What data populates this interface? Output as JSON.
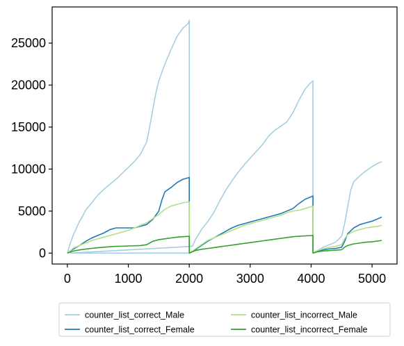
{
  "chart_data": {
    "type": "line",
    "title": "",
    "xlabel": "",
    "ylabel": "",
    "xlim": [
      -250,
      5410
    ],
    "ylim": [
      -1300,
      29300
    ],
    "xticks": [
      0,
      1000,
      2000,
      3000,
      4000,
      5000
    ],
    "xtick_labels": [
      "0",
      "1000",
      "2000",
      "3000",
      "4000",
      "5000"
    ],
    "yticks": [
      0,
      5000,
      10000,
      15000,
      20000,
      25000
    ],
    "ytick_labels": [
      "0",
      "5000",
      "10000",
      "15000",
      "20000",
      "25000"
    ],
    "grid": false,
    "legend": {
      "placement": "bottom-center-outside",
      "columns": 2
    },
    "series": [
      {
        "name": "counter_list_correct_Male",
        "color": "#a6cee3",
        "points": [
          [
            0,
            0
          ],
          [
            50,
            1200
          ],
          [
            100,
            2200
          ],
          [
            150,
            3000
          ],
          [
            200,
            3800
          ],
          [
            250,
            4400
          ],
          [
            300,
            5100
          ],
          [
            400,
            6000
          ],
          [
            500,
            6900
          ],
          [
            600,
            7600
          ],
          [
            700,
            8200
          ],
          [
            800,
            8800
          ],
          [
            900,
            9500
          ],
          [
            1000,
            10200
          ],
          [
            1100,
            10900
          ],
          [
            1200,
            11800
          ],
          [
            1300,
            13200
          ],
          [
            1350,
            15000
          ],
          [
            1400,
            17000
          ],
          [
            1450,
            19000
          ],
          [
            1500,
            20500
          ],
          [
            1600,
            22500
          ],
          [
            1700,
            24200
          ],
          [
            1800,
            25800
          ],
          [
            1900,
            26800
          ],
          [
            1980,
            27300
          ],
          [
            2000,
            27700
          ],
          [
            2001,
            0
          ],
          [
            50,
            0
          ],
          [
            2050,
            800
          ],
          [
            2100,
            1600
          ],
          [
            2200,
            2800
          ],
          [
            2300,
            3700
          ],
          [
            2400,
            4800
          ],
          [
            2500,
            6200
          ],
          [
            2600,
            7500
          ],
          [
            2700,
            8600
          ],
          [
            2800,
            9600
          ],
          [
            2900,
            10500
          ],
          [
            3000,
            11300
          ],
          [
            3100,
            12100
          ],
          [
            3200,
            12900
          ],
          [
            3300,
            13900
          ],
          [
            3400,
            14600
          ],
          [
            3500,
            15100
          ],
          [
            3600,
            15600
          ],
          [
            3700,
            16700
          ],
          [
            3800,
            18200
          ],
          [
            3900,
            19500
          ],
          [
            3980,
            20200
          ],
          [
            4030,
            20500
          ],
          [
            4031,
            0
          ],
          [
            4100,
            300
          ],
          [
            4200,
            700
          ],
          [
            4300,
            1000
          ],
          [
            4400,
            1300
          ],
          [
            4500,
            2000
          ],
          [
            4550,
            3500
          ],
          [
            4600,
            5500
          ],
          [
            4650,
            7500
          ],
          [
            4700,
            8500
          ],
          [
            4800,
            9200
          ],
          [
            4900,
            9800
          ],
          [
            5000,
            10300
          ],
          [
            5100,
            10700
          ],
          [
            5160,
            10900
          ]
        ]
      },
      {
        "name": "counter_list_correct_Female",
        "color": "#1f78b4",
        "points": [
          [
            0,
            0
          ],
          [
            100,
            500
          ],
          [
            200,
            900
          ],
          [
            300,
            1400
          ],
          [
            400,
            1800
          ],
          [
            500,
            2100
          ],
          [
            600,
            2400
          ],
          [
            700,
            2800
          ],
          [
            800,
            3000
          ],
          [
            900,
            3000
          ],
          [
            1000,
            3000
          ],
          [
            1100,
            3000
          ],
          [
            1200,
            3200
          ],
          [
            1300,
            3400
          ],
          [
            1350,
            3700
          ],
          [
            1400,
            4000
          ],
          [
            1450,
            4500
          ],
          [
            1500,
            5000
          ],
          [
            1550,
            6300
          ],
          [
            1600,
            7300
          ],
          [
            1700,
            7800
          ],
          [
            1800,
            8400
          ],
          [
            1900,
            8800
          ],
          [
            2000,
            9000
          ],
          [
            2001,
            0
          ],
          [
            2100,
            400
          ],
          [
            2200,
            900
          ],
          [
            2300,
            1400
          ],
          [
            2400,
            1800
          ],
          [
            2500,
            2200
          ],
          [
            2600,
            2600
          ],
          [
            2700,
            3000
          ],
          [
            2800,
            3300
          ],
          [
            2900,
            3500
          ],
          [
            3000,
            3700
          ],
          [
            3100,
            3900
          ],
          [
            3200,
            4100
          ],
          [
            3300,
            4300
          ],
          [
            3400,
            4500
          ],
          [
            3500,
            4700
          ],
          [
            3600,
            5000
          ],
          [
            3700,
            5300
          ],
          [
            3800,
            5900
          ],
          [
            3900,
            6400
          ],
          [
            4030,
            6800
          ],
          [
            4031,
            0
          ],
          [
            4100,
            200
          ],
          [
            4200,
            400
          ],
          [
            4300,
            500
          ],
          [
            4400,
            550
          ],
          [
            4500,
            700
          ],
          [
            4550,
            1400
          ],
          [
            4600,
            2300
          ],
          [
            4700,
            3000
          ],
          [
            4800,
            3400
          ],
          [
            4900,
            3600
          ],
          [
            5000,
            3800
          ],
          [
            5100,
            4100
          ],
          [
            5160,
            4300
          ]
        ]
      },
      {
        "name": "counter_list_incorrect_Male",
        "color": "#b2df8a",
        "points": [
          [
            0,
            0
          ],
          [
            100,
            600
          ],
          [
            200,
            900
          ],
          [
            300,
            1200
          ],
          [
            400,
            1500
          ],
          [
            500,
            1700
          ],
          [
            600,
            1900
          ],
          [
            700,
            2100
          ],
          [
            800,
            2300
          ],
          [
            900,
            2500
          ],
          [
            1000,
            2700
          ],
          [
            1100,
            3000
          ],
          [
            1200,
            3300
          ],
          [
            1300,
            3600
          ],
          [
            1400,
            4100
          ],
          [
            1500,
            4600
          ],
          [
            1600,
            5200
          ],
          [
            1700,
            5600
          ],
          [
            1800,
            5800
          ],
          [
            1900,
            6000
          ],
          [
            2000,
            6100
          ],
          [
            2001,
            0
          ],
          [
            2100,
            500
          ],
          [
            2200,
            1000
          ],
          [
            2300,
            1500
          ],
          [
            2400,
            1800
          ],
          [
            2500,
            2100
          ],
          [
            2600,
            2400
          ],
          [
            2700,
            2700
          ],
          [
            2800,
            3000
          ],
          [
            2900,
            3300
          ],
          [
            3000,
            3500
          ],
          [
            3100,
            3700
          ],
          [
            3200,
            3900
          ],
          [
            3300,
            4100
          ],
          [
            3400,
            4300
          ],
          [
            3500,
            4500
          ],
          [
            3600,
            4800
          ],
          [
            3700,
            5000
          ],
          [
            3800,
            5100
          ],
          [
            3900,
            5300
          ],
          [
            4030,
            5600
          ],
          [
            4031,
            0
          ],
          [
            4100,
            300
          ],
          [
            4200,
            500
          ],
          [
            4300,
            700
          ],
          [
            4400,
            800
          ],
          [
            4500,
            1000
          ],
          [
            4550,
            1700
          ],
          [
            4600,
            2200
          ],
          [
            4700,
            2600
          ],
          [
            4800,
            2800
          ],
          [
            4900,
            3000
          ],
          [
            5000,
            3100
          ],
          [
            5100,
            3200
          ],
          [
            5160,
            3300
          ]
        ]
      },
      {
        "name": "counter_list_incorrect_Female",
        "color": "#33a02c",
        "points": [
          [
            0,
            0
          ],
          [
            100,
            250
          ],
          [
            200,
            380
          ],
          [
            300,
            480
          ],
          [
            400,
            560
          ],
          [
            500,
            640
          ],
          [
            600,
            700
          ],
          [
            700,
            760
          ],
          [
            800,
            800
          ],
          [
            900,
            820
          ],
          [
            1000,
            850
          ],
          [
            1100,
            870
          ],
          [
            1200,
            900
          ],
          [
            1300,
            1000
          ],
          [
            1350,
            1200
          ],
          [
            1400,
            1400
          ],
          [
            1500,
            1600
          ],
          [
            1600,
            1700
          ],
          [
            1700,
            1800
          ],
          [
            1800,
            1900
          ],
          [
            1900,
            1950
          ],
          [
            2000,
            2000
          ],
          [
            2001,
            0
          ],
          [
            2100,
            300
          ],
          [
            2200,
            450
          ],
          [
            2300,
            550
          ],
          [
            2400,
            650
          ],
          [
            2500,
            750
          ],
          [
            2600,
            850
          ],
          [
            2700,
            950
          ],
          [
            2800,
            1050
          ],
          [
            2900,
            1150
          ],
          [
            3000,
            1250
          ],
          [
            3100,
            1350
          ],
          [
            3200,
            1450
          ],
          [
            3300,
            1550
          ],
          [
            3400,
            1650
          ],
          [
            3500,
            1750
          ],
          [
            3600,
            1850
          ],
          [
            3700,
            1950
          ],
          [
            3800,
            2000
          ],
          [
            3900,
            2050
          ],
          [
            4030,
            2100
          ],
          [
            4031,
            0
          ],
          [
            4100,
            150
          ],
          [
            4200,
            250
          ],
          [
            4300,
            300
          ],
          [
            4400,
            350
          ],
          [
            4500,
            400
          ],
          [
            4550,
            700
          ],
          [
            4600,
            900
          ],
          [
            4700,
            1100
          ],
          [
            4800,
            1200
          ],
          [
            4900,
            1300
          ],
          [
            5000,
            1350
          ],
          [
            5100,
            1450
          ],
          [
            5160,
            1500
          ]
        ]
      }
    ]
  }
}
